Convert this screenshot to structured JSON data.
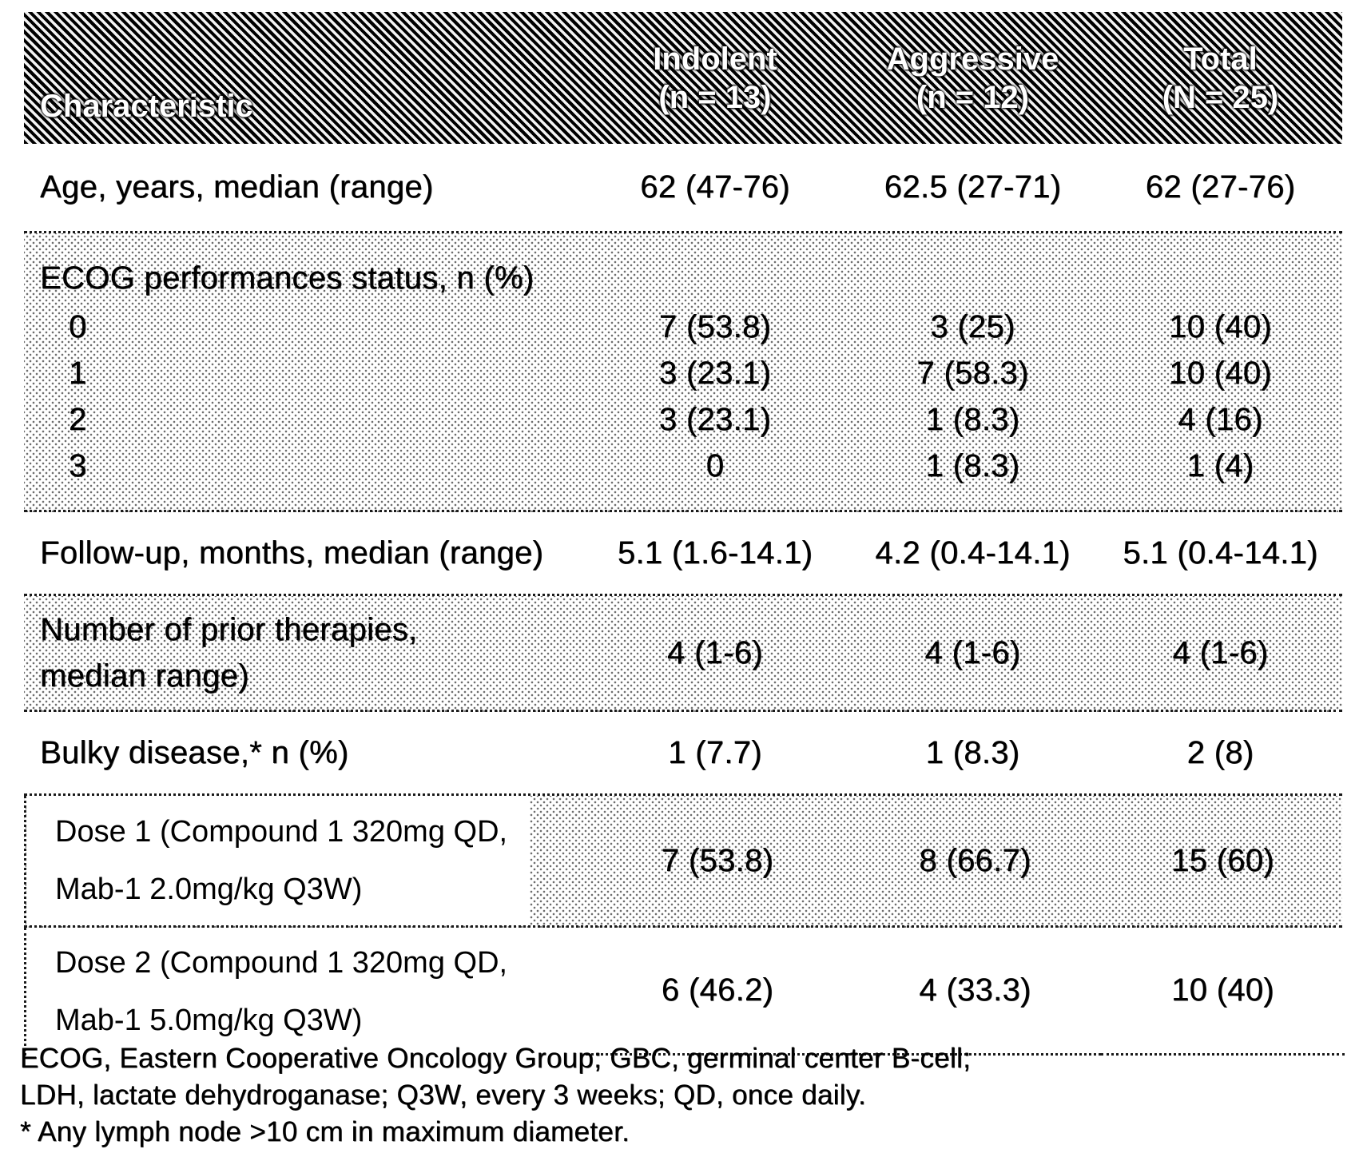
{
  "header": {
    "characteristic": "Characteristic",
    "col1_line1": "Indolent",
    "col1_line2": "(n = 13)",
    "col2_line1": "Aggressive",
    "col2_line2": "(n = 12)",
    "col3_line1": "Total",
    "col3_line2": "(N = 25)"
  },
  "rows": {
    "age": {
      "label": "Age, years, median (range)",
      "v1": "62 (47-76)",
      "v2": "62.5 (27-71)",
      "v3": "62 (27-76)"
    },
    "ecog": {
      "title": "ECOG performances status, n (%)",
      "r0": {
        "label": "0",
        "v1": "7 (53.8)",
        "v2": "3 (25)",
        "v3": "10 (40)"
      },
      "r1": {
        "label": "1",
        "v1": "3 (23.1)",
        "v2": "7 (58.3)",
        "v3": "10 (40)"
      },
      "r2": {
        "label": "2",
        "v1": "3 (23.1)",
        "v2": "1 (8.3)",
        "v3": "4 (16)"
      },
      "r3": {
        "label": "3",
        "v1": "0",
        "v2": "1 (8.3)",
        "v3": "1 (4)"
      }
    },
    "followup": {
      "label": "Follow-up, months, median (range)",
      "v1": "5.1 (1.6-14.1)",
      "v2": "4.2 (0.4-14.1)",
      "v3": "5.1 (0.4-14.1)"
    },
    "prior": {
      "label_line1": "Number of prior therapies,",
      "label_line2": "median range)",
      "v1": "4 (1-6)",
      "v2": "4 (1-6)",
      "v3": "4 (1-6)"
    },
    "bulky": {
      "label": "Bulky disease,* n (%)",
      "v1": "1 (7.7)",
      "v2": "1 (8.3)",
      "v3": "2 (8)"
    },
    "dose1": {
      "label_line1": "Dose 1 (Compound 1 320mg QD,",
      "label_line2": "Mab-1 2.0mg/kg Q3W)",
      "v1": "7 (53.8)",
      "v2": "8 (66.7)",
      "v3": "15 (60)"
    },
    "dose2": {
      "label_line1": "Dose 2 (Compound 1 320mg QD,",
      "label_line2": "Mab-1 5.0mg/kg Q3W)",
      "v1": "6 (46.2)",
      "v2": "4 (33.3)",
      "v3": "10 (40)"
    }
  },
  "footnotes": {
    "line1": "ECOG, Eastern Cooperative Oncology Group; GBC, germinal center B-cell;",
    "line2": "LDH, lactate dehydroganase; Q3W, every 3 weeks; QD, once daily.",
    "line3": "* Any lymph node >10 cm in maximum diameter."
  },
  "colors": {
    "ink": "#000000",
    "paper": "#ffffff"
  }
}
